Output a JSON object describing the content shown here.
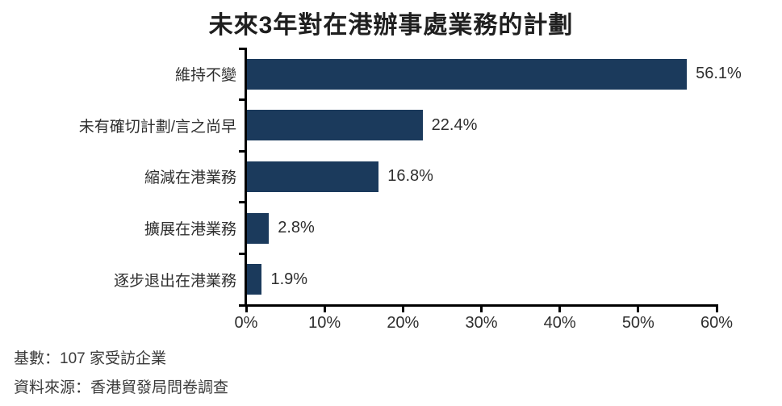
{
  "title": "未來3年對在港辦事處業務的計劃",
  "chart_data": {
    "type": "bar",
    "orientation": "horizontal",
    "title": "未來3年對在港辦事處業務的計劃",
    "categories": [
      "維持不變",
      "未有確切計劃/言之尚早",
      "縮減在港業務",
      "擴展在港業務",
      "逐步退出在港業務"
    ],
    "values": [
      56.1,
      22.4,
      16.8,
      2.8,
      1.9
    ],
    "value_labels": [
      "56.1%",
      "22.4%",
      "16.8%",
      "2.8%",
      "1.9%"
    ],
    "xlabel": "",
    "ylabel": "",
    "xlim": [
      0,
      60
    ],
    "x_tick_labels": [
      "0%",
      "10%",
      "20%",
      "30%",
      "40%",
      "50%",
      "60%"
    ],
    "grid": false,
    "legend": false,
    "bar_color": "#1b3a5c"
  },
  "notes": {
    "base": "基數：107 家受訪企業",
    "source": "資料來源：香港貿發局問卷調查"
  },
  "colors": {
    "bar": "#1b3a5c",
    "title_text": "#1f1f1f",
    "label_text": "#2f2f2f",
    "axis": "#000000",
    "background": "#ffffff"
  }
}
